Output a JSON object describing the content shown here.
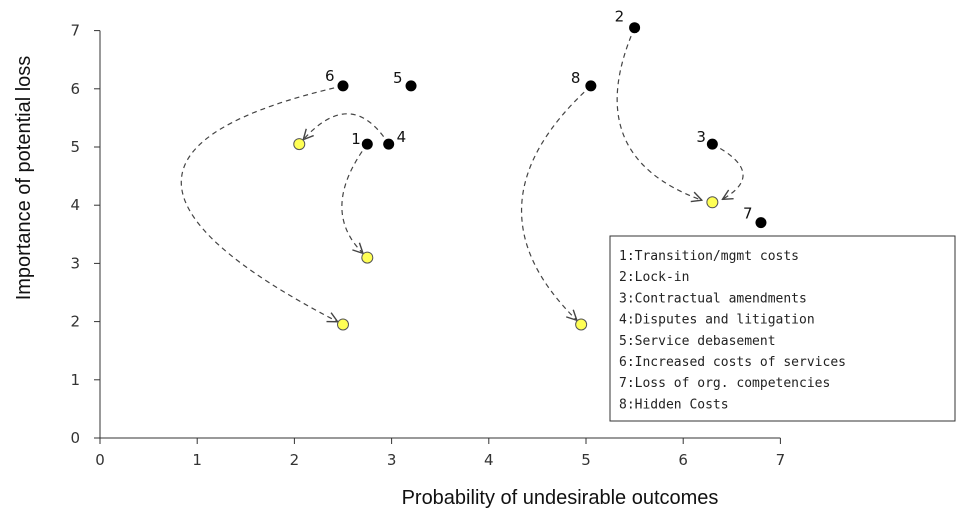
{
  "chart_data": {
    "type": "scatter",
    "title": "",
    "xlabel": "Probability of undesirable outcomes",
    "ylabel": "Importance of potential loss",
    "xlim": [
      0,
      7
    ],
    "ylim": [
      0,
      7
    ],
    "xticks": [
      "0",
      "1",
      "2",
      "3",
      "4",
      "5",
      "6",
      "7"
    ],
    "yticks": [
      "0",
      "1",
      "2",
      "3",
      "4",
      "5",
      "6",
      "7"
    ],
    "grid": false,
    "legend_placement": "bottom-right",
    "colors": {
      "before": "#000000",
      "after": "#ffff55",
      "arrow": "#444444"
    },
    "series": [
      {
        "points": [
          {
            "id": "1",
            "x": 2.75,
            "y": 5.05
          },
          {
            "id": "2",
            "x": 5.5,
            "y": 7.05
          },
          {
            "id": "3",
            "x": 6.3,
            "y": 5.05
          },
          {
            "id": "4",
            "x": 2.97,
            "y": 5.05
          },
          {
            "id": "5",
            "x": 3.2,
            "y": 6.05
          },
          {
            "id": "6",
            "x": 2.5,
            "y": 6.05
          },
          {
            "id": "7",
            "x": 6.8,
            "y": 3.7
          },
          {
            "id": "8",
            "x": 5.05,
            "y": 6.05
          }
        ]
      },
      {
        "points": [
          {
            "x": 2.05,
            "y": 5.05
          },
          {
            "x": 2.75,
            "y": 3.1
          },
          {
            "x": 2.5,
            "y": 1.95
          },
          {
            "x": 4.95,
            "y": 1.95
          },
          {
            "x": 6.3,
            "y": 4.05
          }
        ]
      }
    ],
    "arrows": [
      {
        "from": [
          2.5,
          6.05
        ],
        "to": [
          2.5,
          1.95
        ],
        "via": [
          0.85,
          4.4
        ]
      },
      {
        "from": [
          2.97,
          5.05
        ],
        "to": [
          2.05,
          5.05
        ],
        "via": [
          2.55,
          5.55
        ]
      },
      {
        "from": [
          2.75,
          5.05
        ],
        "to": [
          2.75,
          3.1
        ],
        "via": [
          2.5,
          4.0
        ]
      },
      {
        "from": [
          5.05,
          6.05
        ],
        "to": [
          4.95,
          1.95
        ],
        "via": [
          4.35,
          4.0
        ]
      },
      {
        "from": [
          5.5,
          7.05
        ],
        "to": [
          6.25,
          4.05
        ],
        "via": [
          5.4,
          5.2
        ]
      },
      {
        "from": [
          6.3,
          5.05
        ],
        "to": [
          6.35,
          4.05
        ],
        "via": [
          6.6,
          4.55
        ]
      }
    ],
    "legend": [
      "1:Transition/mgmt costs",
      "2:Lock-in",
      "3:Contractual amendments",
      "4:Disputes and litigation",
      "5:Service debasement",
      "6:Increased costs of services",
      "7:Loss of org. competencies",
      "8:Hidden Costs"
    ]
  }
}
